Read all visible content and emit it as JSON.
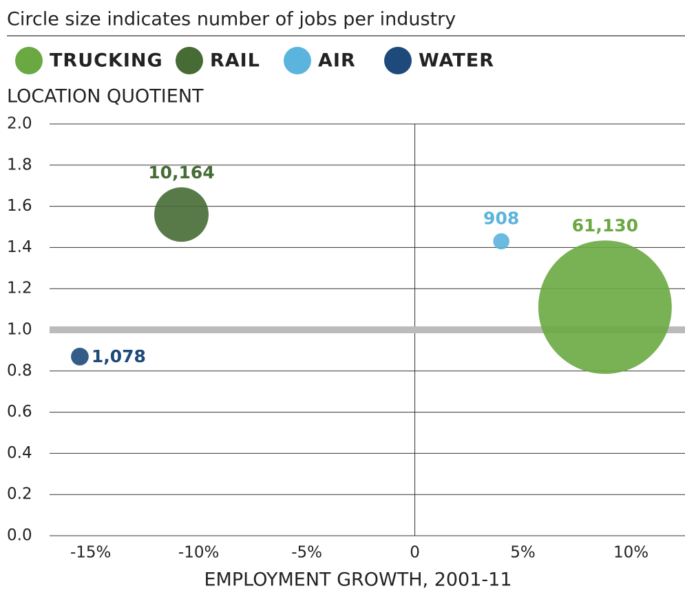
{
  "chart_data": {
    "type": "bubble",
    "title": "Circle size indicates number of jobs per industry",
    "ylabel": "LOCATION QUOTIENT",
    "xlabel": "EMPLOYMENT GROWTH, 2001-11",
    "xlim": [
      -16.9,
      12.5
    ],
    "ylim": [
      0,
      2
    ],
    "xticks": [
      {
        "value": -15,
        "label": "-15%"
      },
      {
        "value": -10,
        "label": "-10%"
      },
      {
        "value": -5,
        "label": "-5%"
      },
      0,
      {
        "value": 5,
        "label": "5%"
      },
      {
        "value": 10,
        "label": "10%"
      }
    ],
    "yticks": [
      {
        "value": 0,
        "label": "0.0"
      },
      0.2,
      0.4,
      0.6,
      0.8,
      {
        "value": 1,
        "label": "1.0"
      },
      1.2,
      1.4,
      1.6,
      1.8,
      {
        "value": 2,
        "label": "2.0"
      }
    ],
    "grid": true,
    "reference_y": 1,
    "series": [
      {
        "name": "TRUCKING",
        "color": "#6aa842",
        "x": [
          8.8
        ],
        "values": [
          1.11
        ],
        "sizes": [
          61130
        ],
        "size_labels": [
          "61,130"
        ]
      },
      {
        "name": "RAIL",
        "color": "#466b35",
        "x": [
          -10.8
        ],
        "values": [
          1.56
        ],
        "sizes": [
          10164
        ],
        "size_labels": [
          "10,164"
        ]
      },
      {
        "name": "AIR",
        "color": "#5bb4dd",
        "x": [
          4.0
        ],
        "values": [
          1.43
        ],
        "sizes": [
          908
        ],
        "size_labels": [
          "908"
        ]
      },
      {
        "name": "WATER",
        "color": "#1d4a7a",
        "x": [
          -15.5
        ],
        "values": [
          0.87
        ],
        "sizes": [
          1078
        ],
        "size_labels": [
          "1,078"
        ]
      }
    ]
  }
}
